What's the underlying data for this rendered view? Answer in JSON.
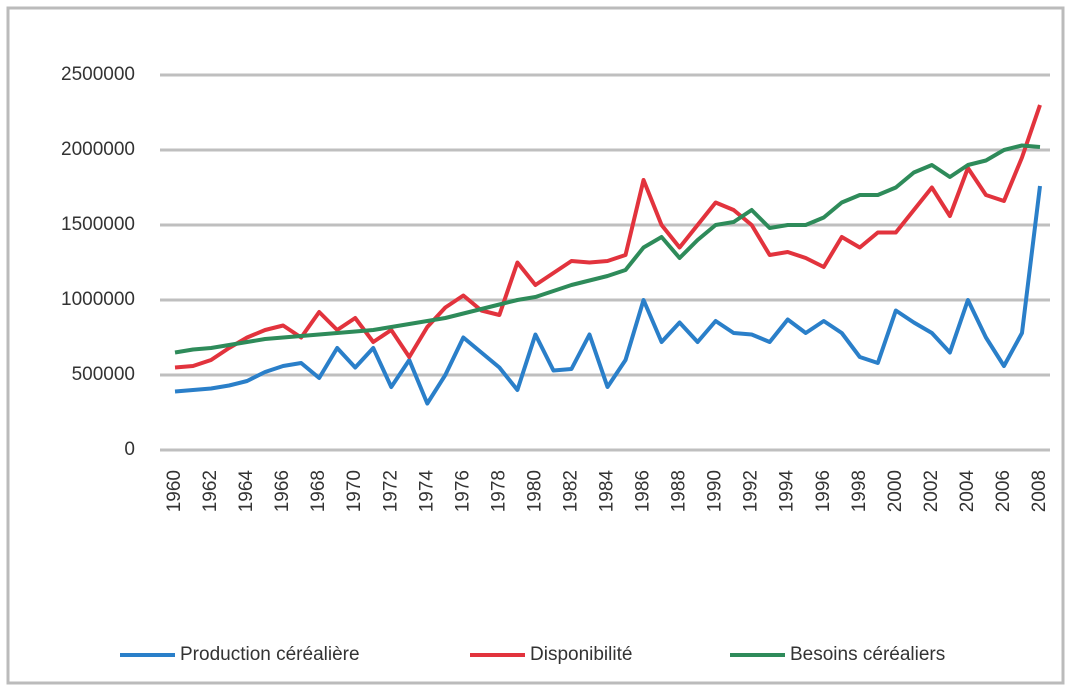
{
  "chart_data": {
    "type": "line",
    "categories": [
      "1960",
      null,
      "1962",
      null,
      "1964",
      null,
      "1966",
      null,
      "1968",
      null,
      "1970",
      null,
      "1972",
      null,
      "1974",
      null,
      "1976",
      null,
      "1978",
      null,
      "1980",
      null,
      "1982",
      null,
      "1984",
      null,
      "1986",
      null,
      "1988",
      null,
      "1990",
      null,
      "1992",
      null,
      "1994",
      null,
      "1996",
      null,
      "1998",
      null,
      "2000",
      null,
      "2002",
      null,
      "2004",
      null,
      "2006",
      null,
      "2008"
    ],
    "series": [
      {
        "name": "Production céréalière",
        "color": "#2a7fc9",
        "values": [
          390000,
          400000,
          410000,
          430000,
          460000,
          520000,
          560000,
          580000,
          480000,
          680000,
          550000,
          680000,
          420000,
          600000,
          310000,
          500000,
          750000,
          650000,
          550000,
          400000,
          770000,
          530000,
          540000,
          770000,
          420000,
          600000,
          1000000,
          720000,
          850000,
          720000,
          860000,
          780000,
          770000,
          720000,
          870000,
          780000,
          860000,
          780000,
          620000,
          580000,
          930000,
          850000,
          780000,
          650000,
          1000000,
          750000,
          560000,
          780000,
          1760000
        ]
      },
      {
        "name": "Disponibilité",
        "color": "#e2333d",
        "values": [
          550000,
          560000,
          600000,
          680000,
          750000,
          800000,
          830000,
          750000,
          920000,
          800000,
          880000,
          720000,
          800000,
          620000,
          820000,
          950000,
          1030000,
          930000,
          900000,
          1250000,
          1100000,
          1180000,
          1260000,
          1250000,
          1260000,
          1300000,
          1800000,
          1500000,
          1350000,
          1500000,
          1650000,
          1600000,
          1500000,
          1300000,
          1320000,
          1280000,
          1220000,
          1420000,
          1350000,
          1450000,
          1450000,
          1600000,
          1750000,
          1560000,
          1880000,
          1700000,
          1660000,
          1950000,
          2300000
        ]
      },
      {
        "name": "Besoins céréaliers",
        "color": "#2e8b5a",
        "values": [
          650000,
          670000,
          680000,
          700000,
          720000,
          740000,
          750000,
          760000,
          770000,
          780000,
          790000,
          800000,
          820000,
          840000,
          860000,
          880000,
          910000,
          940000,
          970000,
          1000000,
          1020000,
          1060000,
          1100000,
          1130000,
          1160000,
          1200000,
          1350000,
          1420000,
          1280000,
          1400000,
          1500000,
          1520000,
          1600000,
          1480000,
          1500000,
          1500000,
          1550000,
          1650000,
          1700000,
          1700000,
          1750000,
          1850000,
          1900000,
          1820000,
          1900000,
          1930000,
          2000000,
          2030000,
          2020000
        ]
      }
    ],
    "ylim": [
      0,
      2500000
    ],
    "yticks": [
      0,
      500000,
      1000000,
      1500000,
      2000000,
      2500000
    ],
    "grid": true,
    "legend": "bottom"
  }
}
